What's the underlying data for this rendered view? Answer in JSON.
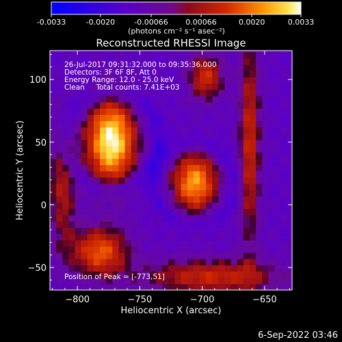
{
  "colorbar": {
    "tick_labels": [
      "-0.0033",
      "-0.0020",
      "-0.00066",
      "0.00066",
      "0.0020",
      "0.0033"
    ],
    "tick_values": [
      -0.0033,
      -0.002,
      -0.00066,
      0.00066,
      0.002,
      0.0033
    ],
    "range": [
      -0.0033,
      0.0033
    ],
    "units_label": "(photons cm⁻² s⁻¹ asec⁻²)",
    "colormap": [
      "#0000ff",
      "#5a00c8",
      "#7800a0",
      "#8c0a1e",
      "#c81e00",
      "#ff6400",
      "#ffc800",
      "#ffffff"
    ]
  },
  "chart_data": {
    "type": "heatmap",
    "title": "Reconstructed RHESSI Image",
    "xlabel": "Heliocentric X (arcsec)",
    "ylabel": "Heliocentric Y (arcsec)",
    "xlim": [
      -822,
      -628
    ],
    "ylim": [
      -68,
      123
    ],
    "x_ticks": [
      -800,
      -750,
      -700,
      -650
    ],
    "x_tick_labels": [
      "−800",
      "−750",
      "−700",
      "−650"
    ],
    "y_ticks": [
      -50,
      0,
      50,
      100
    ],
    "y_tick_labels": [
      "−50",
      "0",
      "50",
      "100"
    ],
    "sources": [
      {
        "x": -773,
        "y": 51,
        "sx": 14,
        "sy": 24,
        "peak": 0.0033
      },
      {
        "x": -706,
        "y": 18,
        "sx": 13,
        "sy": 17,
        "peak": 0.0024
      },
      {
        "x": -782,
        "y": -37,
        "sx": 16,
        "sy": 14,
        "peak": 0.0017
      },
      {
        "x": -697,
        "y": 102,
        "sx": 10,
        "sy": 13,
        "peak": 0.0012
      },
      {
        "x": -662,
        "y": 50,
        "sx": 6,
        "sy": 60,
        "peak": 0.0011
      },
      {
        "x": -693,
        "y": -57,
        "sx": 40,
        "sy": 10,
        "peak": 0.0011
      },
      {
        "x": -812,
        "y": 15,
        "sx": 8,
        "sy": 35,
        "peak": 0.0007
      }
    ],
    "background_level": -0.0011,
    "annotations": {
      "time_range": "26-Jul-2017 09:31:32.000 to 09:35:36.000",
      "detectors": "Detectors: 3F 6F 8F, Att 0",
      "energy_range": "Energy Range: 12.0 - 25.0 keV",
      "method_counts": "Clean     Total counts: 7.41E+03",
      "peak_position": "Position of Peak = [-773,51]"
    }
  },
  "footer": {
    "timestamp": "6-Sep-2022 03:46"
  }
}
